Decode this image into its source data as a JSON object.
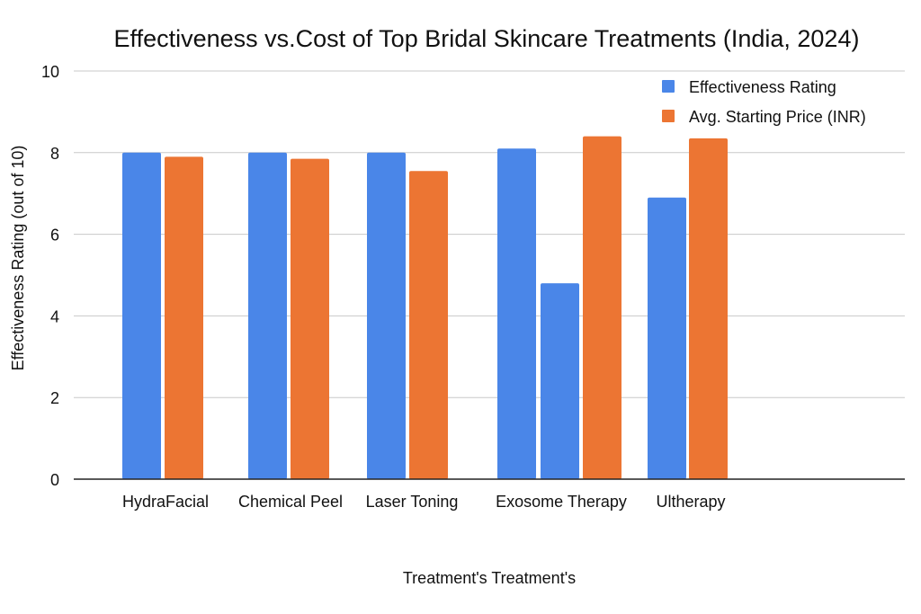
{
  "chart_data": {
    "type": "bar",
    "title": "Effectiveness vs.Cost of Top Bridal Skincare Treatments (India, 2024)",
    "xlabel": "Treatment's  Treatment's",
    "ylabel": "Effectiveness Rating (out of 10)",
    "ylim": [
      0,
      10
    ],
    "yticks": [
      0,
      2,
      4,
      6,
      8,
      10
    ],
    "grid": true,
    "legend_position": "top-right",
    "categories": [
      "HydraFacial",
      "Chemical Peel",
      "Laser Toning",
      "Exosome Therapy",
      "Ultherapy"
    ],
    "series": [
      {
        "name": "Effectiveness Rating",
        "color": "#4a86e8",
        "values": [
          8.0,
          8.0,
          8.0,
          8.1,
          6.9
        ]
      },
      {
        "name": "Avg. Starting Price (INR)",
        "color": "#ec7533",
        "values": [
          7.9,
          7.85,
          7.55,
          8.4,
          8.35
        ]
      }
    ],
    "extra_bars": [
      {
        "category": "Exosome Therapy",
        "series": "Effectiveness Rating",
        "color": "#4a86e8",
        "value": 4.8
      }
    ]
  }
}
